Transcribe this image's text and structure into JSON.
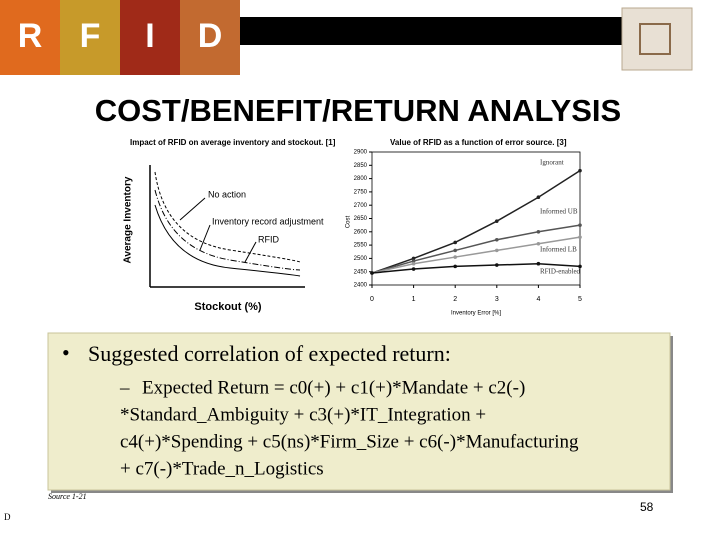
{
  "header": {
    "letters": [
      "R",
      "F",
      "I",
      "D"
    ]
  },
  "title": "COST/BENEFIT/RETURN ANALYSIS",
  "left_figure": {
    "title": "Impact of RFID on average inventory and stockout. [1]",
    "y_label": "Average Inventory",
    "x_label": "Stockout (%)",
    "curve_labels": [
      "No action",
      "Inventory record adjustment",
      "RFID"
    ]
  },
  "chart_data": {
    "type": "line",
    "title": "Value of RFID as a function of error source. [3]",
    "x_label": "Inventory Error [%]",
    "y_label": "Cost",
    "x": [
      0,
      1,
      2,
      3,
      4,
      5
    ],
    "series": [
      {
        "name": "Ignorant",
        "color": "#222222",
        "values": [
          2445,
          2500,
          2560,
          2640,
          2730,
          2830
        ]
      },
      {
        "name": "Informed UB",
        "color": "#555555",
        "values": [
          2445,
          2490,
          2530,
          2570,
          2600,
          2625
        ]
      },
      {
        "name": "Informed LB",
        "color": "#999999",
        "values": [
          2445,
          2480,
          2505,
          2530,
          2555,
          2580
        ]
      },
      {
        "name": "RFID-enabled",
        "color": "#111111",
        "values": [
          2445,
          2460,
          2470,
          2475,
          2480,
          2470
        ]
      }
    ],
    "xlim": [
      0,
      5
    ],
    "xticks": [
      0,
      1,
      2,
      3,
      4,
      5
    ],
    "ylim": [
      2400,
      2900
    ],
    "yticks": [
      2400,
      2450,
      2500,
      2550,
      2600,
      2650,
      2700,
      2750,
      2800,
      2850,
      2900
    ]
  },
  "bullet": {
    "text": "Suggested correlation of expected return:",
    "sub_lines": [
      "Expected Return = c0(+) + c1(+)*Mandate + c2(-)",
      "*Standard_Ambiguity + c3(+)*IT_Integration +",
      "c4(+)*Spending + c5(ns)*Firm_Size + c6(-)*Manufacturing",
      "+ c7(-)*Trade_n_Logistics"
    ]
  },
  "source": "Source 1-21",
  "page_number": "58",
  "footer_letter": "D"
}
